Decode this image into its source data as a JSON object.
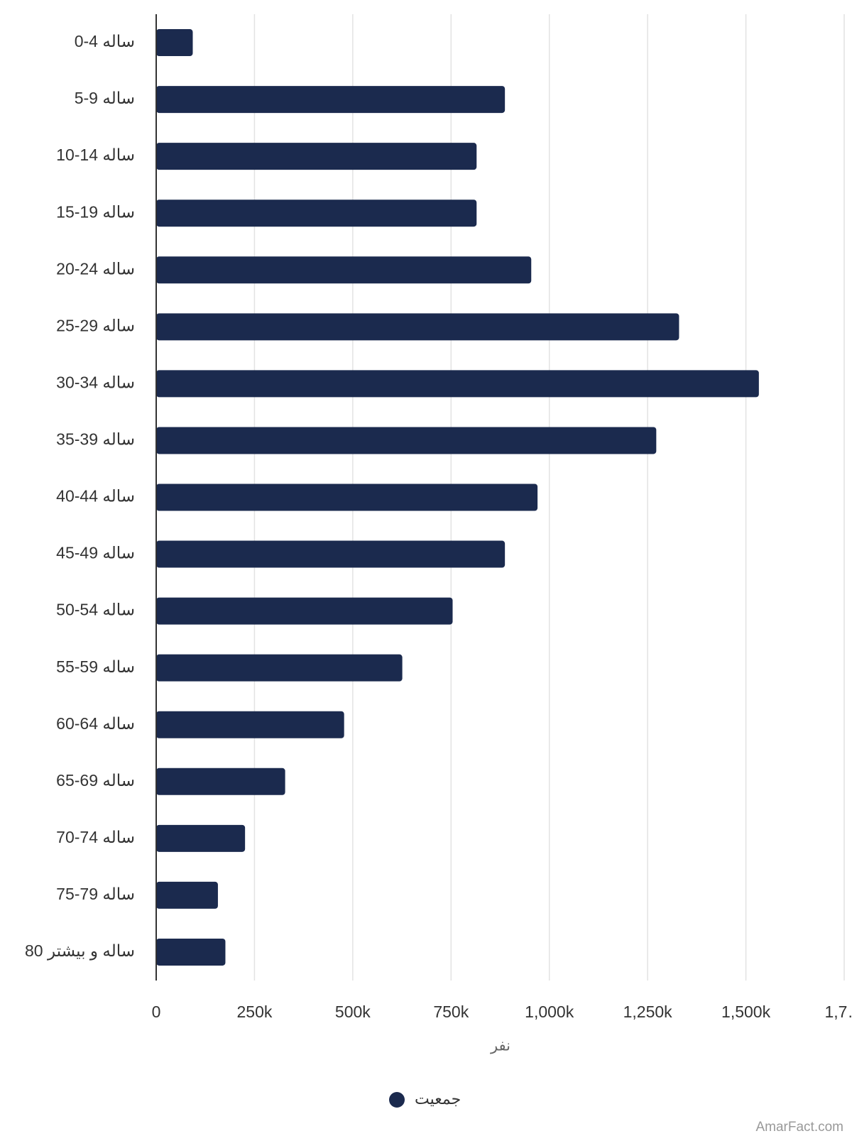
{
  "chart_data": {
    "type": "bar",
    "orientation": "horizontal",
    "categories": [
      "0-4 ساله",
      "5-9 ساله",
      "10-14 ساله",
      "15-19 ساله",
      "20-24 ساله",
      "25-29 ساله",
      "30-34 ساله",
      "35-39 ساله",
      "40-44 ساله",
      "45-49 ساله",
      "50-54 ساله",
      "55-59 ساله",
      "60-64 ساله",
      "65-69 ساله",
      "70-74 ساله",
      "75-79 ساله",
      "80 ساله و بیشتر"
    ],
    "series": [
      {
        "name": "جمعیت",
        "color": "#1b2a4e",
        "values": [
          93000,
          887000,
          815000,
          815000,
          954000,
          1330000,
          1533000,
          1272000,
          970000,
          887000,
          754000,
          626000,
          478000,
          328000,
          226000,
          157000,
          176000
        ]
      }
    ],
    "xlim": [
      0,
      1750000
    ],
    "xticks": [
      0,
      {
        "value": 250000,
        "label": "250k"
      },
      {
        "value": 500000,
        "label": "500k"
      },
      {
        "value": 750000,
        "label": "750k"
      },
      {
        "value": 1000000,
        "label": "1,000k"
      },
      {
        "value": 1250000,
        "label": "1,250k"
      },
      {
        "value": 1500000,
        "label": "1,500k"
      },
      {
        "value": 1750000,
        "label": "1,7…"
      }
    ],
    "x_label": "نفر",
    "grid": true,
    "legend": "bottom",
    "watermark": "AmarFact.com"
  }
}
